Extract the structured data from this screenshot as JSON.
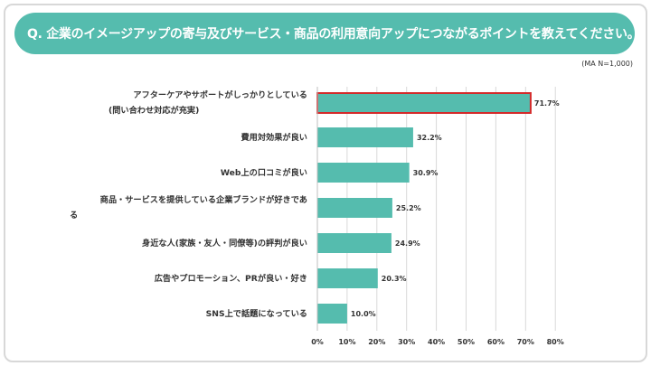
{
  "title": "Q. 企業のイメージアップの寄与及びサービス・商品の利用意向アップにつながるポイントを教えてください。",
  "note": "(MA N=1,000)",
  "colors": {
    "accent": "#55bcae",
    "highlight_border": "#d42a2a"
  },
  "chart_data": {
    "type": "bar",
    "orientation": "horizontal",
    "categories": [
      [
        "アフターケアやサポートがしっかりとしている",
        "(問い合わせ対応が充実)"
      ],
      [
        "費用対効果が良い"
      ],
      [
        "Web上の口コミが良い"
      ],
      [
        "商品・サービスを提供している企業ブランドが好きであ",
        "る"
      ],
      [
        "身近な人(家族・友人・同僚等)の評判が良い"
      ],
      [
        "広告やプロモーション、PRが良い・好き"
      ],
      [
        "SNS上で話題になっている"
      ]
    ],
    "values": [
      71.7,
      32.2,
      30.9,
      25.2,
      24.9,
      20.3,
      10.0
    ],
    "value_labels": [
      "71.7%",
      "32.2%",
      "30.9%",
      "25.2%",
      "24.9%",
      "20.3%",
      "10.0%"
    ],
    "xlim": [
      0,
      80
    ],
    "ticks": [
      "0%",
      "10%",
      "20%",
      "30%",
      "40%",
      "50%",
      "60%",
      "70%",
      "80%"
    ],
    "grid": true,
    "highlighted_index": 0
  }
}
